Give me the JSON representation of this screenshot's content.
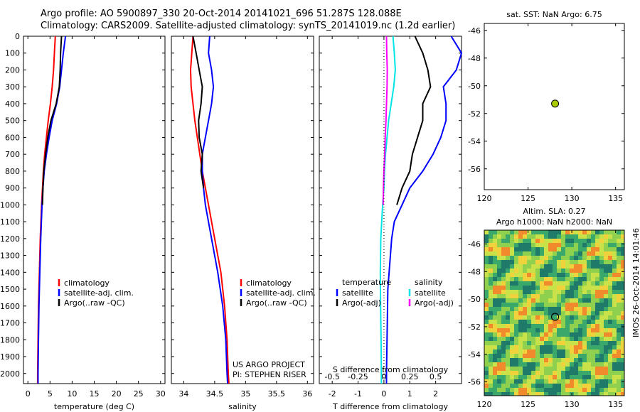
{
  "header": {
    "line1": "Argo profile: AO 5900897_330 20-Oct-2014 20141021_696 51.287S 128.088E",
    "line2": "Climatology: CARS2009. Satellite-adjusted climatology: synTS_20141019.nc (1.2d earlier)"
  },
  "side_label": "IMOS 26-Oct-2014 14:01:46",
  "colors": {
    "climatology": "#ff0000",
    "satellite": "#0000ff",
    "argo": "#000000",
    "cyan": "#00e5e5",
    "magenta": "#ff00ff",
    "marker": "#aacc00"
  },
  "chart_data": [
    {
      "type": "line",
      "id": "temperature",
      "xlabel": "temperature (deg C)",
      "xlim": [
        -1,
        31
      ],
      "xticks": [
        0,
        5,
        10,
        15,
        20,
        25,
        30
      ],
      "ylim": [
        2060,
        0
      ],
      "yticks": [
        0,
        100,
        200,
        300,
        400,
        500,
        600,
        700,
        800,
        900,
        1000,
        1100,
        1200,
        1300,
        1400,
        1500,
        1600,
        1700,
        1800,
        1900,
        2000
      ],
      "legend": [
        "climatology",
        "satellite-adj. clim.",
        "Argo(..raw -QC)"
      ],
      "series": [
        {
          "name": "climatology",
          "color": "#ff0000",
          "depth": [
            0,
            100,
            200,
            300,
            400,
            500,
            600,
            700,
            800,
            900,
            1000,
            1200,
            1400,
            1600,
            1800,
            2000,
            2060
          ],
          "values": [
            6.2,
            6.0,
            5.8,
            5.5,
            5.1,
            4.6,
            4.2,
            3.8,
            3.5,
            3.3,
            3.1,
            2.8,
            2.6,
            2.4,
            2.3,
            2.2,
            2.2
          ]
        },
        {
          "name": "satellite-adj. clim.",
          "color": "#0000ff",
          "depth": [
            0,
            100,
            200,
            300,
            400,
            500,
            600,
            700,
            800,
            900,
            1000,
            1200,
            1400,
            1600,
            1800,
            2000,
            2060
          ],
          "values": [
            8.5,
            8.0,
            7.6,
            7.2,
            6.5,
            5.5,
            4.8,
            4.2,
            3.7,
            3.4,
            3.2,
            2.9,
            2.7,
            2.5,
            2.4,
            2.3,
            2.3
          ]
        },
        {
          "name": "Argo(..raw -QC)",
          "color": "#000000",
          "depth": [
            0,
            100,
            200,
            300,
            400,
            500,
            600,
            700,
            800,
            900,
            1000
          ],
          "values": [
            7.6,
            7.4,
            7.3,
            7.1,
            6.4,
            5.2,
            4.5,
            4.0,
            3.6,
            3.4,
            3.3
          ]
        }
      ]
    },
    {
      "type": "line",
      "id": "salinity",
      "xlabel": "salinity",
      "xlim": [
        33.8,
        36.1
      ],
      "xticks": [
        34,
        34.5,
        35,
        35.5,
        36
      ],
      "xticklabels": [
        "34",
        "34.5",
        "35",
        "35.5",
        "36"
      ],
      "ylim": [
        2060,
        0
      ],
      "legend": [
        "climatology",
        "satellite-adj. clim.",
        "Argo(..raw -QC)"
      ],
      "annotations": [
        "US ARGO PROJECT",
        "PI: STEPHEN RISER"
      ],
      "series": [
        {
          "name": "climatology",
          "color": "#ff0000",
          "depth": [
            0,
            100,
            200,
            300,
            400,
            500,
            600,
            700,
            800,
            900,
            1000,
            1200,
            1400,
            1600,
            1800,
            2000,
            2060
          ],
          "values": [
            34.15,
            34.13,
            34.11,
            34.12,
            34.15,
            34.18,
            34.22,
            34.26,
            34.3,
            34.35,
            34.4,
            34.5,
            34.6,
            34.66,
            34.7,
            34.72,
            34.73
          ]
        },
        {
          "name": "satellite-adj. clim.",
          "color": "#0000ff",
          "depth": [
            0,
            100,
            200,
            300,
            400,
            500,
            600,
            700,
            800,
            900,
            1000,
            1200,
            1400,
            1600,
            1800,
            2000,
            2060
          ],
          "values": [
            34.42,
            34.4,
            34.45,
            34.48,
            34.45,
            34.4,
            34.35,
            34.3,
            34.3,
            34.32,
            34.35,
            34.45,
            34.55,
            34.63,
            34.68,
            34.7,
            34.71
          ]
        },
        {
          "name": "Argo(..raw -QC)",
          "color": "#000000",
          "depth": [
            0,
            100,
            200,
            300,
            400,
            500,
            600,
            700,
            800,
            900
          ],
          "values": [
            34.15,
            34.2,
            34.25,
            34.3,
            34.28,
            34.24,
            34.25,
            34.3,
            34.28,
            34.32
          ]
        }
      ]
    },
    {
      "type": "line",
      "id": "difference",
      "xlabel": "T difference from climatology",
      "x2label": "S difference from climatology",
      "xlim": [
        -2.5,
        3
      ],
      "xticks": [
        -2,
        -1,
        0,
        1,
        2
      ],
      "x2ticks": [
        -0.5,
        -0.25,
        0,
        0.25,
        0.5
      ],
      "x2ticklabels": [
        "-0.5",
        "-0.25",
        "0",
        "0.25",
        "0.5"
      ],
      "ylim": [
        2060,
        0
      ],
      "legend_titles": [
        "temperature",
        "salinity"
      ],
      "legend": [
        "satellite",
        "Argo(-adj)",
        "satellite",
        "Argo(-adj)"
      ],
      "series": [
        {
          "name": "satellite",
          "color": "#0000ff",
          "depth": [
            0,
            100,
            200,
            300,
            400,
            500,
            600,
            700,
            800,
            900,
            1000,
            1100,
            1200,
            1500,
            2000,
            2060
          ],
          "values": [
            2.6,
            3.0,
            2.8,
            2.3,
            2.4,
            2.4,
            2.2,
            1.9,
            1.5,
            1.0,
            0.7,
            0.4,
            0.3,
            0.15,
            0.1,
            0.1
          ]
        },
        {
          "name": "Argo(-adj)",
          "color": "#000000",
          "depth": [
            0,
            100,
            200,
            300,
            400,
            500,
            600,
            700,
            800,
            900,
            1000
          ],
          "values": [
            1.2,
            1.5,
            1.7,
            1.8,
            1.5,
            1.5,
            1.3,
            1.1,
            1.0,
            0.7,
            0.5
          ]
        },
        {
          "name": "satellite",
          "color": "#00e5e5",
          "depth": [
            0,
            100,
            200,
            300,
            400,
            500,
            600,
            700,
            800,
            900,
            1000,
            1200,
            1400,
            1600,
            1800,
            2000,
            2060
          ],
          "values": [
            0.35,
            0.4,
            0.44,
            0.38,
            0.28,
            0.18,
            0.12,
            0.06,
            0.02,
            0.0,
            -0.05,
            -0.12,
            -0.14,
            -0.13,
            -0.11,
            -0.1,
            -0.1
          ]
        },
        {
          "name": "Argo(-adj)",
          "color": "#ff00ff",
          "depth": [
            0,
            100,
            200,
            300,
            400,
            500,
            600,
            700,
            800,
            900,
            1000
          ],
          "values": [
            0.1,
            0.11,
            0.13,
            0.12,
            0.1,
            0.08,
            0.05,
            0.03,
            0.0,
            -0.02,
            -0.03
          ]
        }
      ]
    },
    {
      "type": "scatter",
      "id": "sst-map",
      "title": "sat. SST: NaN Argo: 6.75",
      "xlim": [
        120,
        136
      ],
      "ylim": [
        -57.5,
        -45.5
      ],
      "xticks": [
        120,
        125,
        130,
        135
      ],
      "yticks": [
        -46,
        -48,
        -50,
        -52,
        -54,
        -56
      ],
      "points": [
        {
          "x": 128.088,
          "y": -51.287
        }
      ]
    },
    {
      "type": "heatmap",
      "id": "sla-map",
      "title": "Altim. SLA: 0.27",
      "subtitle": "Argo h1000: NaN h2000: NaN",
      "xlim": [
        120,
        136
      ],
      "ylim": [
        -57,
        -45
      ],
      "xticks": [
        120,
        125,
        130,
        135
      ],
      "yticks": [
        -46,
        -48,
        -50,
        -52,
        -54,
        -56
      ],
      "points": [
        {
          "x": 128.088,
          "y": -51.287
        }
      ]
    }
  ]
}
